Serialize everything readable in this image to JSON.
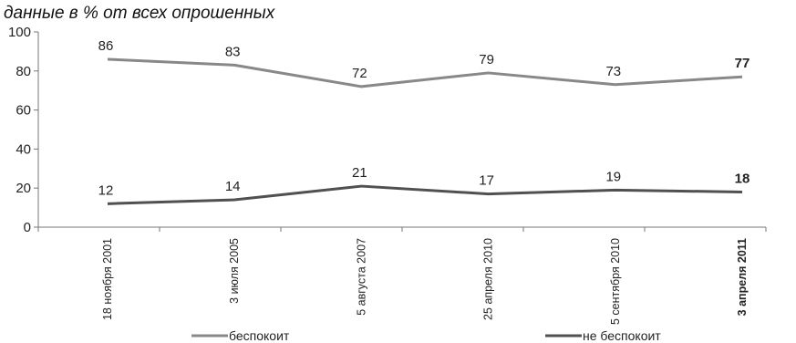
{
  "chart_data": {
    "type": "line",
    "title": "",
    "subtitle": "данные в % от всех опрошенных",
    "categories": [
      "18 ноября 2001",
      "3 июля 2005",
      "5 августа 2007",
      "25 апреля 2010",
      "5 сентября 2010",
      "3 апреля 2011"
    ],
    "bold_last": true,
    "series": [
      {
        "name": "беспокоит",
        "values": [
          86,
          83,
          72,
          79,
          73,
          77
        ],
        "labels": [
          "86",
          "83",
          "72",
          "79",
          "73",
          "77"
        ],
        "color": "#888888"
      },
      {
        "name": "не беспокоит",
        "values": [
          12,
          14,
          21,
          17,
          19,
          18
        ],
        "labels": [
          "12",
          "14",
          "21",
          "17",
          "19",
          "18"
        ],
        "color": "#505050"
      }
    ],
    "y_ticks": [
      "0",
      "20",
      "40",
      "60",
      "80",
      "100"
    ],
    "ylim": [
      0,
      100
    ],
    "grid": false,
    "legend_position": "bottom"
  }
}
